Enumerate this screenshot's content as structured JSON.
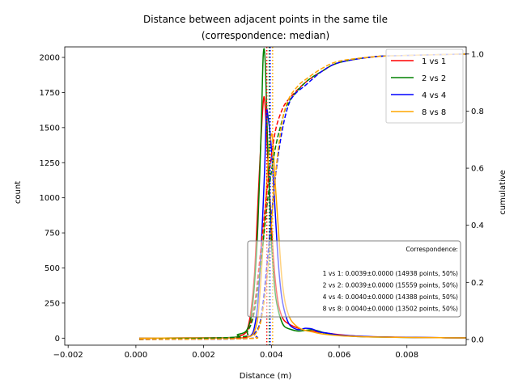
{
  "chart_data": {
    "type": "line",
    "title": "Distance between adjacent points in the same tile",
    "subtitle": "(correspondence: median)",
    "xlabel": "Distance (m)",
    "ylabel": "count",
    "y2label": "cumulative",
    "xlim": [
      -0.0021,
      0.00975
    ],
    "ylim": [
      -50,
      2075
    ],
    "y2lim": [
      -0.02,
      1.025
    ],
    "xticks": [
      -0.002,
      0.0,
      0.002,
      0.004,
      0.006,
      0.008
    ],
    "xtick_labels": [
      "−0.002",
      "0.000",
      "0.002",
      "0.004",
      "0.006",
      "0.008"
    ],
    "yticks": [
      0,
      250,
      500,
      750,
      1000,
      1250,
      1500,
      1750,
      2000
    ],
    "ytick_labels": [
      "0",
      "250",
      "500",
      "750",
      "1000",
      "1250",
      "1500",
      "1750",
      "2000"
    ],
    "y2ticks": [
      0.0,
      0.2,
      0.4,
      0.6,
      0.8,
      1.0
    ],
    "y2tick_labels": [
      "0.0",
      "0.2",
      "0.4",
      "0.6",
      "0.8",
      "1.0"
    ],
    "grid": false,
    "legend_position": "top-right",
    "series": [
      {
        "name": "1 vs 1",
        "color": "#ff0000",
        "median": 0.0039,
        "count_points": [
          [
            0.0001,
            0
          ],
          [
            0.0028,
            3
          ],
          [
            0.003,
            12
          ],
          [
            0.0032,
            30
          ],
          [
            0.0033,
            70
          ],
          [
            0.0034,
            200
          ],
          [
            0.0035,
            450
          ],
          [
            0.0036,
            950
          ],
          [
            0.0037,
            1450
          ],
          [
            0.00378,
            1720
          ],
          [
            0.00385,
            1500
          ],
          [
            0.0039,
            1250
          ],
          [
            0.004,
            800
          ],
          [
            0.0041,
            450
          ],
          [
            0.0042,
            250
          ],
          [
            0.0043,
            160
          ],
          [
            0.0044,
            120
          ],
          [
            0.0046,
            90
          ],
          [
            0.0048,
            70
          ],
          [
            0.005,
            55
          ],
          [
            0.0052,
            50
          ],
          [
            0.0055,
            40
          ],
          [
            0.006,
            25
          ],
          [
            0.0065,
            15
          ],
          [
            0.007,
            10
          ],
          [
            0.008,
            6
          ],
          [
            0.009,
            3
          ],
          [
            0.00975,
            2
          ]
        ],
        "cumulative_points": [
          [
            0.0001,
            0
          ],
          [
            0.003,
            0.005
          ],
          [
            0.0033,
            0.03
          ],
          [
            0.0035,
            0.12
          ],
          [
            0.0037,
            0.33
          ],
          [
            0.0039,
            0.55
          ],
          [
            0.0041,
            0.72
          ],
          [
            0.0043,
            0.8
          ],
          [
            0.0045,
            0.84
          ],
          [
            0.005,
            0.9
          ],
          [
            0.0055,
            0.94
          ],
          [
            0.006,
            0.97
          ],
          [
            0.007,
            0.99
          ],
          [
            0.008,
            0.995
          ],
          [
            0.00975,
            1.0
          ]
        ]
      },
      {
        "name": "2 vs 2",
        "color": "#008000",
        "median": 0.0039,
        "count_points": [
          [
            0.0001,
            0
          ],
          [
            0.0028,
            5
          ],
          [
            0.003,
            25
          ],
          [
            0.0032,
            40
          ],
          [
            0.0033,
            70
          ],
          [
            0.0034,
            150
          ],
          [
            0.0035,
            380
          ],
          [
            0.0036,
            800
          ],
          [
            0.0037,
            1500
          ],
          [
            0.00376,
            2020
          ],
          [
            0.00382,
            1950
          ],
          [
            0.0039,
            1300
          ],
          [
            0.004,
            700
          ],
          [
            0.0041,
            350
          ],
          [
            0.0042,
            200
          ],
          [
            0.0043,
            120
          ],
          [
            0.0044,
            80
          ],
          [
            0.0046,
            60
          ],
          [
            0.0048,
            50
          ],
          [
            0.005,
            55
          ],
          [
            0.0052,
            60
          ],
          [
            0.0054,
            50
          ],
          [
            0.0056,
            35
          ],
          [
            0.006,
            20
          ],
          [
            0.0065,
            12
          ],
          [
            0.007,
            8
          ],
          [
            0.008,
            5
          ],
          [
            0.009,
            3
          ],
          [
            0.00975,
            2
          ]
        ],
        "cumulative_points": [
          [
            0.0001,
            0
          ],
          [
            0.003,
            0.008
          ],
          [
            0.0033,
            0.03
          ],
          [
            0.0035,
            0.1
          ],
          [
            0.0037,
            0.28
          ],
          [
            0.0039,
            0.5
          ],
          [
            0.0041,
            0.66
          ],
          [
            0.0043,
            0.76
          ],
          [
            0.0045,
            0.83
          ],
          [
            0.005,
            0.9
          ],
          [
            0.0055,
            0.94
          ],
          [
            0.006,
            0.97
          ],
          [
            0.007,
            0.99
          ],
          [
            0.008,
            0.995
          ],
          [
            0.00975,
            1.0
          ]
        ]
      },
      {
        "name": "4 vs 4",
        "color": "#0000ff",
        "median": 0.004,
        "count_points": [
          [
            0.0001,
            0
          ],
          [
            0.003,
            2
          ],
          [
            0.0032,
            5
          ],
          [
            0.0034,
            20
          ],
          [
            0.0035,
            80
          ],
          [
            0.0036,
            250
          ],
          [
            0.0037,
            650
          ],
          [
            0.0038,
            1200
          ],
          [
            0.00385,
            1600
          ],
          [
            0.0039,
            1580
          ],
          [
            0.004,
            1350
          ],
          [
            0.0041,
            950
          ],
          [
            0.0042,
            550
          ],
          [
            0.0043,
            300
          ],
          [
            0.0044,
            180
          ],
          [
            0.0045,
            110
          ],
          [
            0.0046,
            80
          ],
          [
            0.0048,
            60
          ],
          [
            0.005,
            70
          ],
          [
            0.0052,
            65
          ],
          [
            0.0054,
            45
          ],
          [
            0.0056,
            38
          ],
          [
            0.0058,
            30
          ],
          [
            0.006,
            22
          ],
          [
            0.0065,
            15
          ],
          [
            0.007,
            10
          ],
          [
            0.008,
            6
          ],
          [
            0.009,
            3
          ],
          [
            0.00975,
            2
          ]
        ],
        "cumulative_points": [
          [
            0.0001,
            0
          ],
          [
            0.0033,
            0.003
          ],
          [
            0.0035,
            0.02
          ],
          [
            0.0037,
            0.08
          ],
          [
            0.0039,
            0.3
          ],
          [
            0.0041,
            0.55
          ],
          [
            0.0043,
            0.72
          ],
          [
            0.0045,
            0.82
          ],
          [
            0.0047,
            0.86
          ],
          [
            0.005,
            0.89
          ],
          [
            0.0055,
            0.94
          ],
          [
            0.006,
            0.97
          ],
          [
            0.007,
            0.99
          ],
          [
            0.008,
            0.995
          ],
          [
            0.00975,
            1.0
          ]
        ]
      },
      {
        "name": "8 vs 8",
        "color": "#ffa500",
        "median": 0.004,
        "count_points": [
          [
            0.0001,
            0
          ],
          [
            0.003,
            2
          ],
          [
            0.0032,
            5
          ],
          [
            0.0034,
            15
          ],
          [
            0.0035,
            50
          ],
          [
            0.0036,
            150
          ],
          [
            0.0037,
            450
          ],
          [
            0.0038,
            850
          ],
          [
            0.0039,
            1250
          ],
          [
            0.004,
            1450
          ],
          [
            0.00405,
            1380
          ],
          [
            0.0041,
            1150
          ],
          [
            0.0042,
            800
          ],
          [
            0.0043,
            450
          ],
          [
            0.0044,
            260
          ],
          [
            0.0045,
            170
          ],
          [
            0.0046,
            120
          ],
          [
            0.0048,
            75
          ],
          [
            0.005,
            55
          ],
          [
            0.0052,
            45
          ],
          [
            0.0055,
            30
          ],
          [
            0.006,
            18
          ],
          [
            0.0065,
            12
          ],
          [
            0.007,
            8
          ],
          [
            0.008,
            5
          ],
          [
            0.009,
            3
          ],
          [
            0.00975,
            2
          ]
        ],
        "cumulative_points": [
          [
            0.0001,
            0
          ],
          [
            0.0033,
            0.003
          ],
          [
            0.0035,
            0.015
          ],
          [
            0.0037,
            0.07
          ],
          [
            0.0039,
            0.25
          ],
          [
            0.0041,
            0.55
          ],
          [
            0.0043,
            0.75
          ],
          [
            0.0045,
            0.84
          ],
          [
            0.0048,
            0.89
          ],
          [
            0.005,
            0.91
          ],
          [
            0.0055,
            0.95
          ],
          [
            0.006,
            0.975
          ],
          [
            0.007,
            0.99
          ],
          [
            0.008,
            0.995
          ],
          [
            0.00975,
            1.0
          ]
        ]
      }
    ],
    "annotation": {
      "title": "Correspondence:",
      "lines": [
        "1 vs 1: 0.0039±0.0000 (14938 points, 50%)",
        "2 vs 2: 0.0039±0.0000 (15559 points, 50%)",
        "4 vs 4: 0.0040±0.0000 (14388 points, 50%)",
        "8 vs 8: 0.0040±0.0000 (13502 points, 50%)"
      ]
    }
  }
}
